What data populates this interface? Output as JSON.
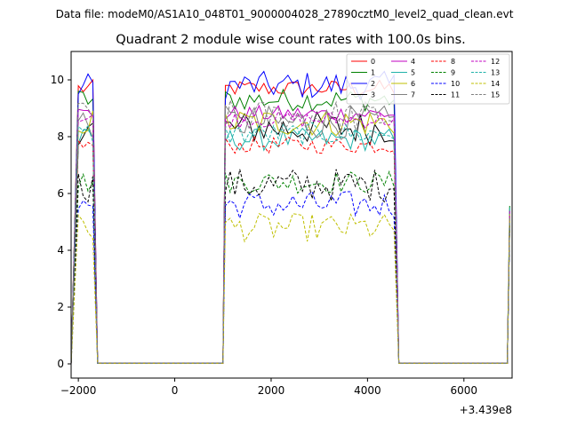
{
  "figure": {
    "suptitle": "Data file: modeM0/AS1A10_048T01_9000004028_27890cztM0_level2_quad_clean.evt"
  },
  "chart_data": {
    "type": "line",
    "title": "Quadrant 2 module wise count rates with 100.0s bins.",
    "xlabel": "",
    "ylabel": "",
    "x_offset_label": "+3.439e8",
    "xlim": [
      -2150,
      7000
    ],
    "ylim": [
      -0.5,
      11
    ],
    "xticks": [
      -2000,
      0,
      2000,
      4000,
      6000
    ],
    "xtick_labels": [
      "−2000",
      "0",
      "2000",
      "4000",
      "6000"
    ],
    "yticks": [
      0,
      2,
      4,
      6,
      8,
      10
    ],
    "ytick_labels": [
      "0",
      "2",
      "4",
      "6",
      "8",
      "10"
    ],
    "grid": false,
    "legend_placement": "top-right",
    "segments": [
      {
        "start": -2000,
        "end": -1600
      },
      {
        "start": 1050,
        "end": 4650
      },
      {
        "start": 6900,
        "end": 6950
      }
    ],
    "series": [
      {
        "name": "0",
        "color": "#ff0000",
        "dash": "solid",
        "level": 9.7
      },
      {
        "name": "1",
        "color": "#008000",
        "dash": "solid",
        "level": 9.3
      },
      {
        "name": "2",
        "color": "#0000ff",
        "dash": "solid",
        "level": 9.8
      },
      {
        "name": "3",
        "color": "#000000",
        "dash": "solid",
        "level": 8.3
      },
      {
        "name": "4",
        "color": "#c000c0",
        "dash": "solid",
        "level": 8.8
      },
      {
        "name": "5",
        "color": "#20b2aa",
        "dash": "solid",
        "level": 7.9
      },
      {
        "name": "6",
        "color": "#bfbf00",
        "dash": "solid",
        "level": 8.5
      },
      {
        "name": "7",
        "color": "#808080",
        "dash": "solid",
        "level": 8.5
      },
      {
        "name": "8",
        "color": "#ff0000",
        "dash": "dashed",
        "level": 7.7
      },
      {
        "name": "9",
        "color": "#008000",
        "dash": "dashed",
        "level": 6.4
      },
      {
        "name": "10",
        "color": "#0000ff",
        "dash": "dashed",
        "level": 5.6
      },
      {
        "name": "11",
        "color": "#000000",
        "dash": "dashed",
        "level": 6.3
      },
      {
        "name": "12",
        "color": "#c000c0",
        "dash": "dashed",
        "level": 8.6
      },
      {
        "name": "13",
        "color": "#20b2aa",
        "dash": "dashed",
        "level": 8.1
      },
      {
        "name": "14",
        "color": "#bfbf00",
        "dash": "dashed",
        "level": 4.8
      },
      {
        "name": "15",
        "color": "#808080",
        "dash": "dashed",
        "level": 8.7
      }
    ]
  }
}
